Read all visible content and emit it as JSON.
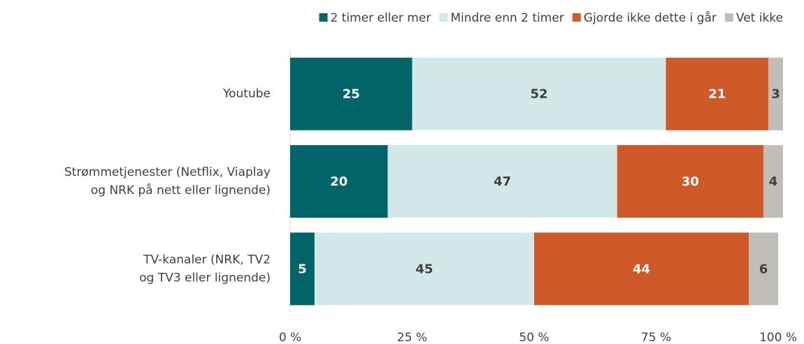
{
  "chart_data": {
    "type": "stacked_barh",
    "categories": [
      [
        "Youtube"
      ],
      [
        "Strømmetjenester (Netflix, Viaplay",
        "og NRK på nett eller lignende)"
      ],
      [
        "TV-kanaler (NRK, TV2",
        "og TV3 eller lignende)"
      ]
    ],
    "series": [
      {
        "name": "2 timer eller mer",
        "color": "#006468",
        "values": [
          25,
          20,
          5
        ]
      },
      {
        "name": "Mindre enn 2 timer",
        "color": "#d3e8e9",
        "values": [
          52,
          47,
          45
        ]
      },
      {
        "name": "Gjorde ikke dette i går",
        "color": "#d0592a",
        "values": [
          21,
          30,
          44
        ]
      },
      {
        "name": "Vet ikke",
        "color": "#c1bdb8",
        "values": [
          3,
          4,
          6
        ]
      }
    ],
    "xlim": [
      0,
      100
    ],
    "xticks": [
      {
        "value": 0,
        "label": "0 %"
      },
      {
        "value": 25,
        "label": "25 %"
      },
      {
        "value": 50,
        "label": "50 %"
      },
      {
        "value": 75,
        "label": "75 %"
      },
      {
        "value": 100,
        "label": "100 %"
      }
    ],
    "legend": "top"
  }
}
